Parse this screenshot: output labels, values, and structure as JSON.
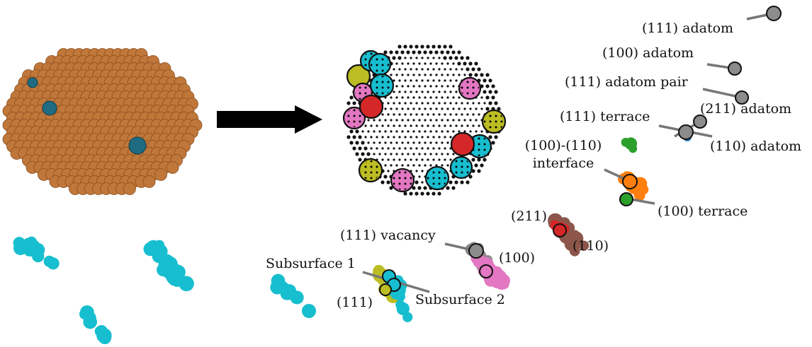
{
  "labels": {
    "adatom_111": "(111) adatom",
    "adatom_100": "(100) adatom",
    "adatom_pair_111": "(111) adatom pair",
    "adatom_211": "(211) adatom",
    "terrace_111": "(111) terrace",
    "adatom_110": "(110) adatom",
    "interface_line1": "(100)-(110)",
    "interface_line2": "interface",
    "terrace_100": "(100) terrace",
    "step_211": "(211)",
    "step_110": "(110)",
    "vacancy_111": "(111) vacancy",
    "step_100": "(100)",
    "subsurface_1": "Subsurface 1",
    "subsurface_2": "Subsurface 2",
    "step_111": "(111)"
  },
  "colors": {
    "copper": "#c0773a",
    "copper_dark": "#8a4f1f",
    "highlight_teal": "#1e6b82",
    "cyan": "#17becf",
    "olive": "#bcbd22",
    "pink": "#e377c2",
    "red": "#d62728",
    "gray": "#8c8c8c",
    "green": "#2ca02c",
    "orange": "#ff7f0e",
    "brown": "#8c564b",
    "blue": "#1f77b4"
  },
  "icons": {
    "transform_arrow": "right-arrow-icon",
    "nanoparticle": "nanoparticle-icon",
    "site_sphere": "lattice-site-icon"
  }
}
